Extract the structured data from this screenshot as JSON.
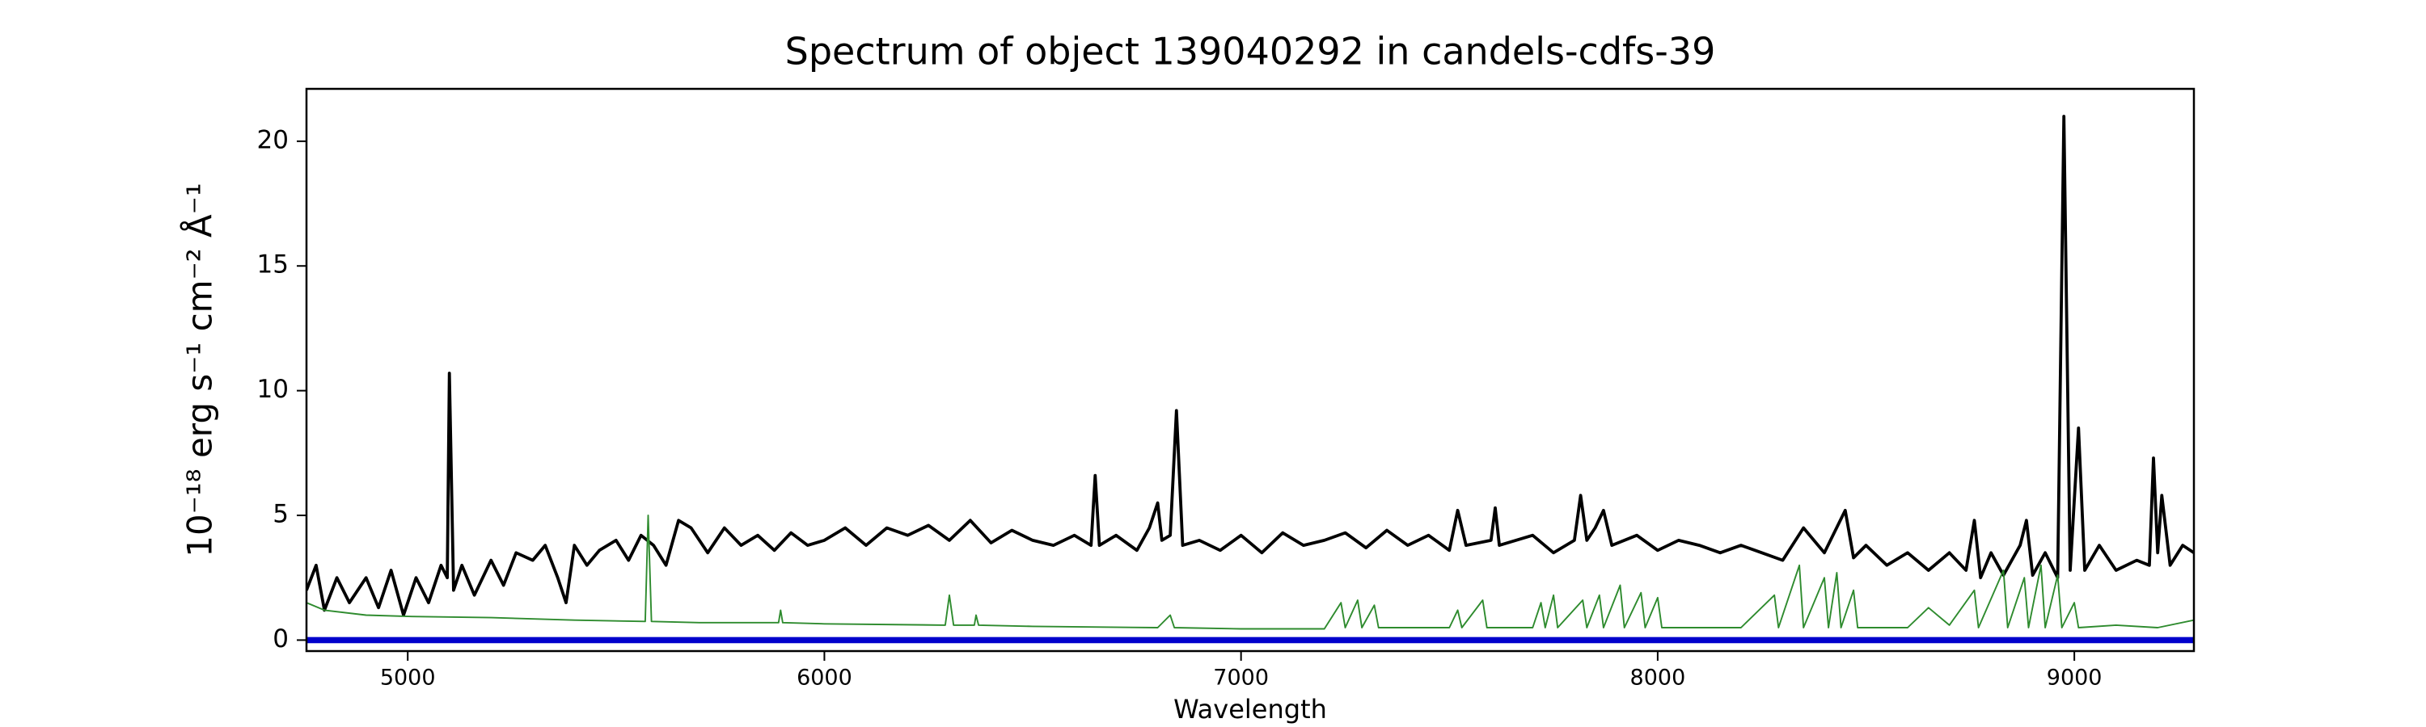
{
  "chart_data": {
    "type": "line",
    "title": "Spectrum of object 139040292 in candels-cdfs-39",
    "xlabel": "Wavelength",
    "ylabel": "10⁻¹⁸ erg s⁻¹ cm⁻² Å⁻¹",
    "xlim": [
      4757,
      9287
    ],
    "ylim": [
      -0.44,
      22.1
    ],
    "xticks": [
      5000,
      6000,
      7000,
      8000,
      9000
    ],
    "yticks": [
      0,
      5,
      10,
      15,
      20
    ],
    "series": [
      {
        "color": "#000000",
        "width": 2,
        "x": [
          4757,
          4780,
          4800,
          4830,
          4860,
          4900,
          4930,
          4960,
          4990,
          5020,
          5050,
          5080,
          5095,
          5100,
          5110,
          5130,
          5160,
          5200,
          5230,
          5260,
          5300,
          5330,
          5360,
          5380,
          5400,
          5430,
          5460,
          5500,
          5530,
          5560,
          5590,
          5620,
          5650,
          5680,
          5720,
          5760,
          5800,
          5840,
          5880,
          5920,
          5960,
          6000,
          6050,
          6100,
          6150,
          6200,
          6250,
          6300,
          6350,
          6400,
          6450,
          6500,
          6550,
          6600,
          6640,
          6650,
          6660,
          6700,
          6750,
          6780,
          6800,
          6810,
          6830,
          6845,
          6860,
          6900,
          6950,
          7000,
          7050,
          7100,
          7150,
          7200,
          7250,
          7300,
          7350,
          7400,
          7450,
          7500,
          7520,
          7540,
          7600,
          7610,
          7620,
          7700,
          7750,
          7800,
          7815,
          7830,
          7850,
          7870,
          7890,
          7950,
          8000,
          8050,
          8100,
          8150,
          8200,
          8250,
          8300,
          8350,
          8400,
          8450,
          8470,
          8500,
          8550,
          8600,
          8650,
          8700,
          8740,
          8760,
          8775,
          8800,
          8830,
          8870,
          8885,
          8900,
          8930,
          8960,
          8975,
          8990,
          9010,
          9025,
          9060,
          9100,
          9150,
          9180,
          9190,
          9200,
          9210,
          9230,
          9260,
          9287
        ],
        "values": [
          2.0,
          3.0,
          1.2,
          2.5,
          1.5,
          2.5,
          1.3,
          2.8,
          1.0,
          2.5,
          1.5,
          3.0,
          2.5,
          10.7,
          2.0,
          3.0,
          1.8,
          3.2,
          2.2,
          3.5,
          3.2,
          3.8,
          2.5,
          1.5,
          3.8,
          3.0,
          3.6,
          4.0,
          3.2,
          4.2,
          3.8,
          3.0,
          4.8,
          4.5,
          3.5,
          4.5,
          3.8,
          4.2,
          3.6,
          4.3,
          3.8,
          4.0,
          4.5,
          3.8,
          4.5,
          4.2,
          4.6,
          4.0,
          4.8,
          3.9,
          4.4,
          4.0,
          3.8,
          4.2,
          3.8,
          6.6,
          3.8,
          4.2,
          3.6,
          4.5,
          5.5,
          4.0,
          4.2,
          9.2,
          3.8,
          4.0,
          3.6,
          4.2,
          3.5,
          4.3,
          3.8,
          4.0,
          4.3,
          3.7,
          4.4,
          3.8,
          4.2,
          3.6,
          5.2,
          3.8,
          4.0,
          5.3,
          3.8,
          4.2,
          3.5,
          4.0,
          5.8,
          4.0,
          4.5,
          5.2,
          3.8,
          4.2,
          3.6,
          4.0,
          3.8,
          3.5,
          3.8,
          3.5,
          3.2,
          4.5,
          3.5,
          5.2,
          3.3,
          3.8,
          3.0,
          3.5,
          2.8,
          3.5,
          2.8,
          4.8,
          2.5,
          3.5,
          2.6,
          3.8,
          4.8,
          2.6,
          3.5,
          2.5,
          21.0,
          2.8,
          8.5,
          2.8,
          3.8,
          2.8,
          3.2,
          3.0,
          7.3,
          3.5,
          5.8,
          3.0,
          3.8,
          3.5
        ]
      },
      {
        "color": "#2e8b2e",
        "width": 1,
        "x": [
          4757,
          4800,
          4900,
          5000,
          5200,
          5400,
          5570,
          5577,
          5585,
          5700,
          5890,
          5895,
          5900,
          6000,
          6290,
          6300,
          6310,
          6360,
          6364,
          6370,
          6500,
          6800,
          6830,
          6840,
          7000,
          7200,
          7240,
          7250,
          7280,
          7290,
          7320,
          7330,
          7500,
          7520,
          7530,
          7580,
          7590,
          7700,
          7720,
          7730,
          7750,
          7760,
          7820,
          7830,
          7860,
          7870,
          7910,
          7920,
          7960,
          7970,
          8000,
          8010,
          8100,
          8200,
          8280,
          8290,
          8340,
          8350,
          8400,
          8410,
          8430,
          8440,
          8470,
          8480,
          8600,
          8650,
          8700,
          8760,
          8770,
          8830,
          8840,
          8880,
          8890,
          8920,
          8930,
          8960,
          8970,
          9000,
          9010,
          9100,
          9200,
          9287
        ],
        "values": [
          1.5,
          1.2,
          1.0,
          0.95,
          0.9,
          0.8,
          0.75,
          5.0,
          0.75,
          0.7,
          0.7,
          1.2,
          0.7,
          0.65,
          0.6,
          1.8,
          0.6,
          0.6,
          1.0,
          0.6,
          0.55,
          0.5,
          1.0,
          0.5,
          0.45,
          0.45,
          1.5,
          0.5,
          1.6,
          0.5,
          1.4,
          0.5,
          0.5,
          1.2,
          0.5,
          1.6,
          0.5,
          0.5,
          1.5,
          0.5,
          1.8,
          0.5,
          1.6,
          0.5,
          1.8,
          0.5,
          2.2,
          0.5,
          1.9,
          0.5,
          1.7,
          0.5,
          0.5,
          0.5,
          1.8,
          0.5,
          3.0,
          0.5,
          2.5,
          0.5,
          2.7,
          0.5,
          2.0,
          0.5,
          0.5,
          1.3,
          0.6,
          2.0,
          0.5,
          2.8,
          0.5,
          2.5,
          0.5,
          3.0,
          0.5,
          2.6,
          0.5,
          1.5,
          0.5,
          0.6,
          0.5,
          0.8
        ]
      },
      {
        "color": "#0000cc",
        "width": 4,
        "x": [
          4757,
          9287
        ],
        "values": [
          0,
          0
        ]
      }
    ]
  }
}
